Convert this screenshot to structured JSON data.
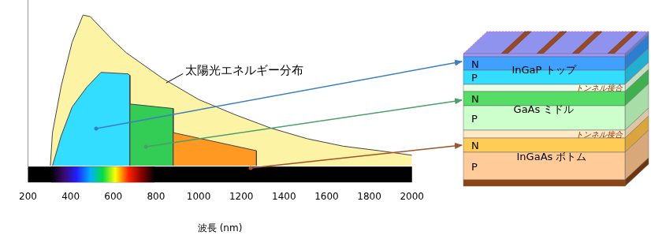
{
  "chart_data": {
    "type": "area",
    "annotations": [
      "太陽光エネルギー分布"
    ],
    "x_label": "波長 (nm)",
    "xlim": [
      200,
      2000
    ],
    "xticks": [
      200,
      400,
      600,
      800,
      1000,
      1200,
      1400,
      1600,
      1800,
      2000
    ],
    "ylim": [
      0,
      110
    ],
    "tick_labels": "x",
    "grid": false,
    "series": [
      {
        "color": "#fcf3a4",
        "x": [
          305,
          315,
          356,
          407,
          458,
          492,
          593,
          661,
          831,
          1000,
          1169,
          1339,
          1508,
          1678,
          1847,
          2000
        ],
        "values": [
          0,
          22,
          53,
          82,
          100,
          99,
          84,
          75,
          58,
          44,
          34,
          25,
          18,
          13,
          10,
          7
        ]
      },
      {
        "color": "#33ddff",
        "x": [
          315,
          356,
          407,
          475,
          542,
          668,
          678,
          678
        ],
        "values": [
          0,
          20,
          39,
          52,
          62,
          61,
          60,
          0
        ]
      },
      {
        "color": "#33cc55",
        "x": [
          678,
          678,
          881,
          881
        ],
        "values": [
          0,
          41,
          38,
          0
        ]
      },
      {
        "color": "#ff9922",
        "x": [
          881,
          881,
          1271,
          1271
        ],
        "values": [
          0,
          22,
          10,
          0
        ]
      }
    ]
  },
  "diagram": {
    "cells": [
      {
        "label": "InGaP トップ",
        "layers": [
          "N",
          "P"
        ]
      },
      {
        "label": "GaAs ミドル",
        "layers": [
          "N",
          "P"
        ]
      },
      {
        "label": "InGaAs ボトム",
        "layers": [
          "N",
          "P"
        ]
      }
    ],
    "junctions": [
      "トンネル接合",
      "トンネル接合"
    ]
  }
}
